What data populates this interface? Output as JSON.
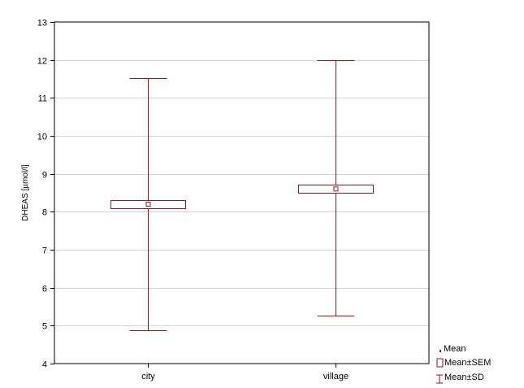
{
  "chart_data": {
    "type": "box",
    "ylabel": "DHEAS [µmol/l]",
    "xlabel": "",
    "ylim": [
      4,
      13
    ],
    "yticks": [
      4,
      5,
      6,
      7,
      8,
      9,
      10,
      11,
      12,
      13
    ],
    "grid": true,
    "categories": [
      "city",
      "village"
    ],
    "groups": [
      {
        "category": "city",
        "mean": 8.2,
        "sem_low": 8.1,
        "sem_high": 8.3,
        "sd_low": 4.88,
        "sd_high": 11.53
      },
      {
        "category": "village",
        "mean": 8.6,
        "sem_low": 8.5,
        "sem_high": 8.72,
        "sd_low": 5.27,
        "sd_high": 12.0
      }
    ],
    "legend": {
      "position": "bottom-right",
      "items": [
        "Mean",
        "Mean±SEM",
        "Mean±SD"
      ]
    },
    "colors": {
      "series": "#8b1a1a",
      "grid": "#d3d3d3",
      "frame": "#000000",
      "background": "#ffffff"
    }
  }
}
